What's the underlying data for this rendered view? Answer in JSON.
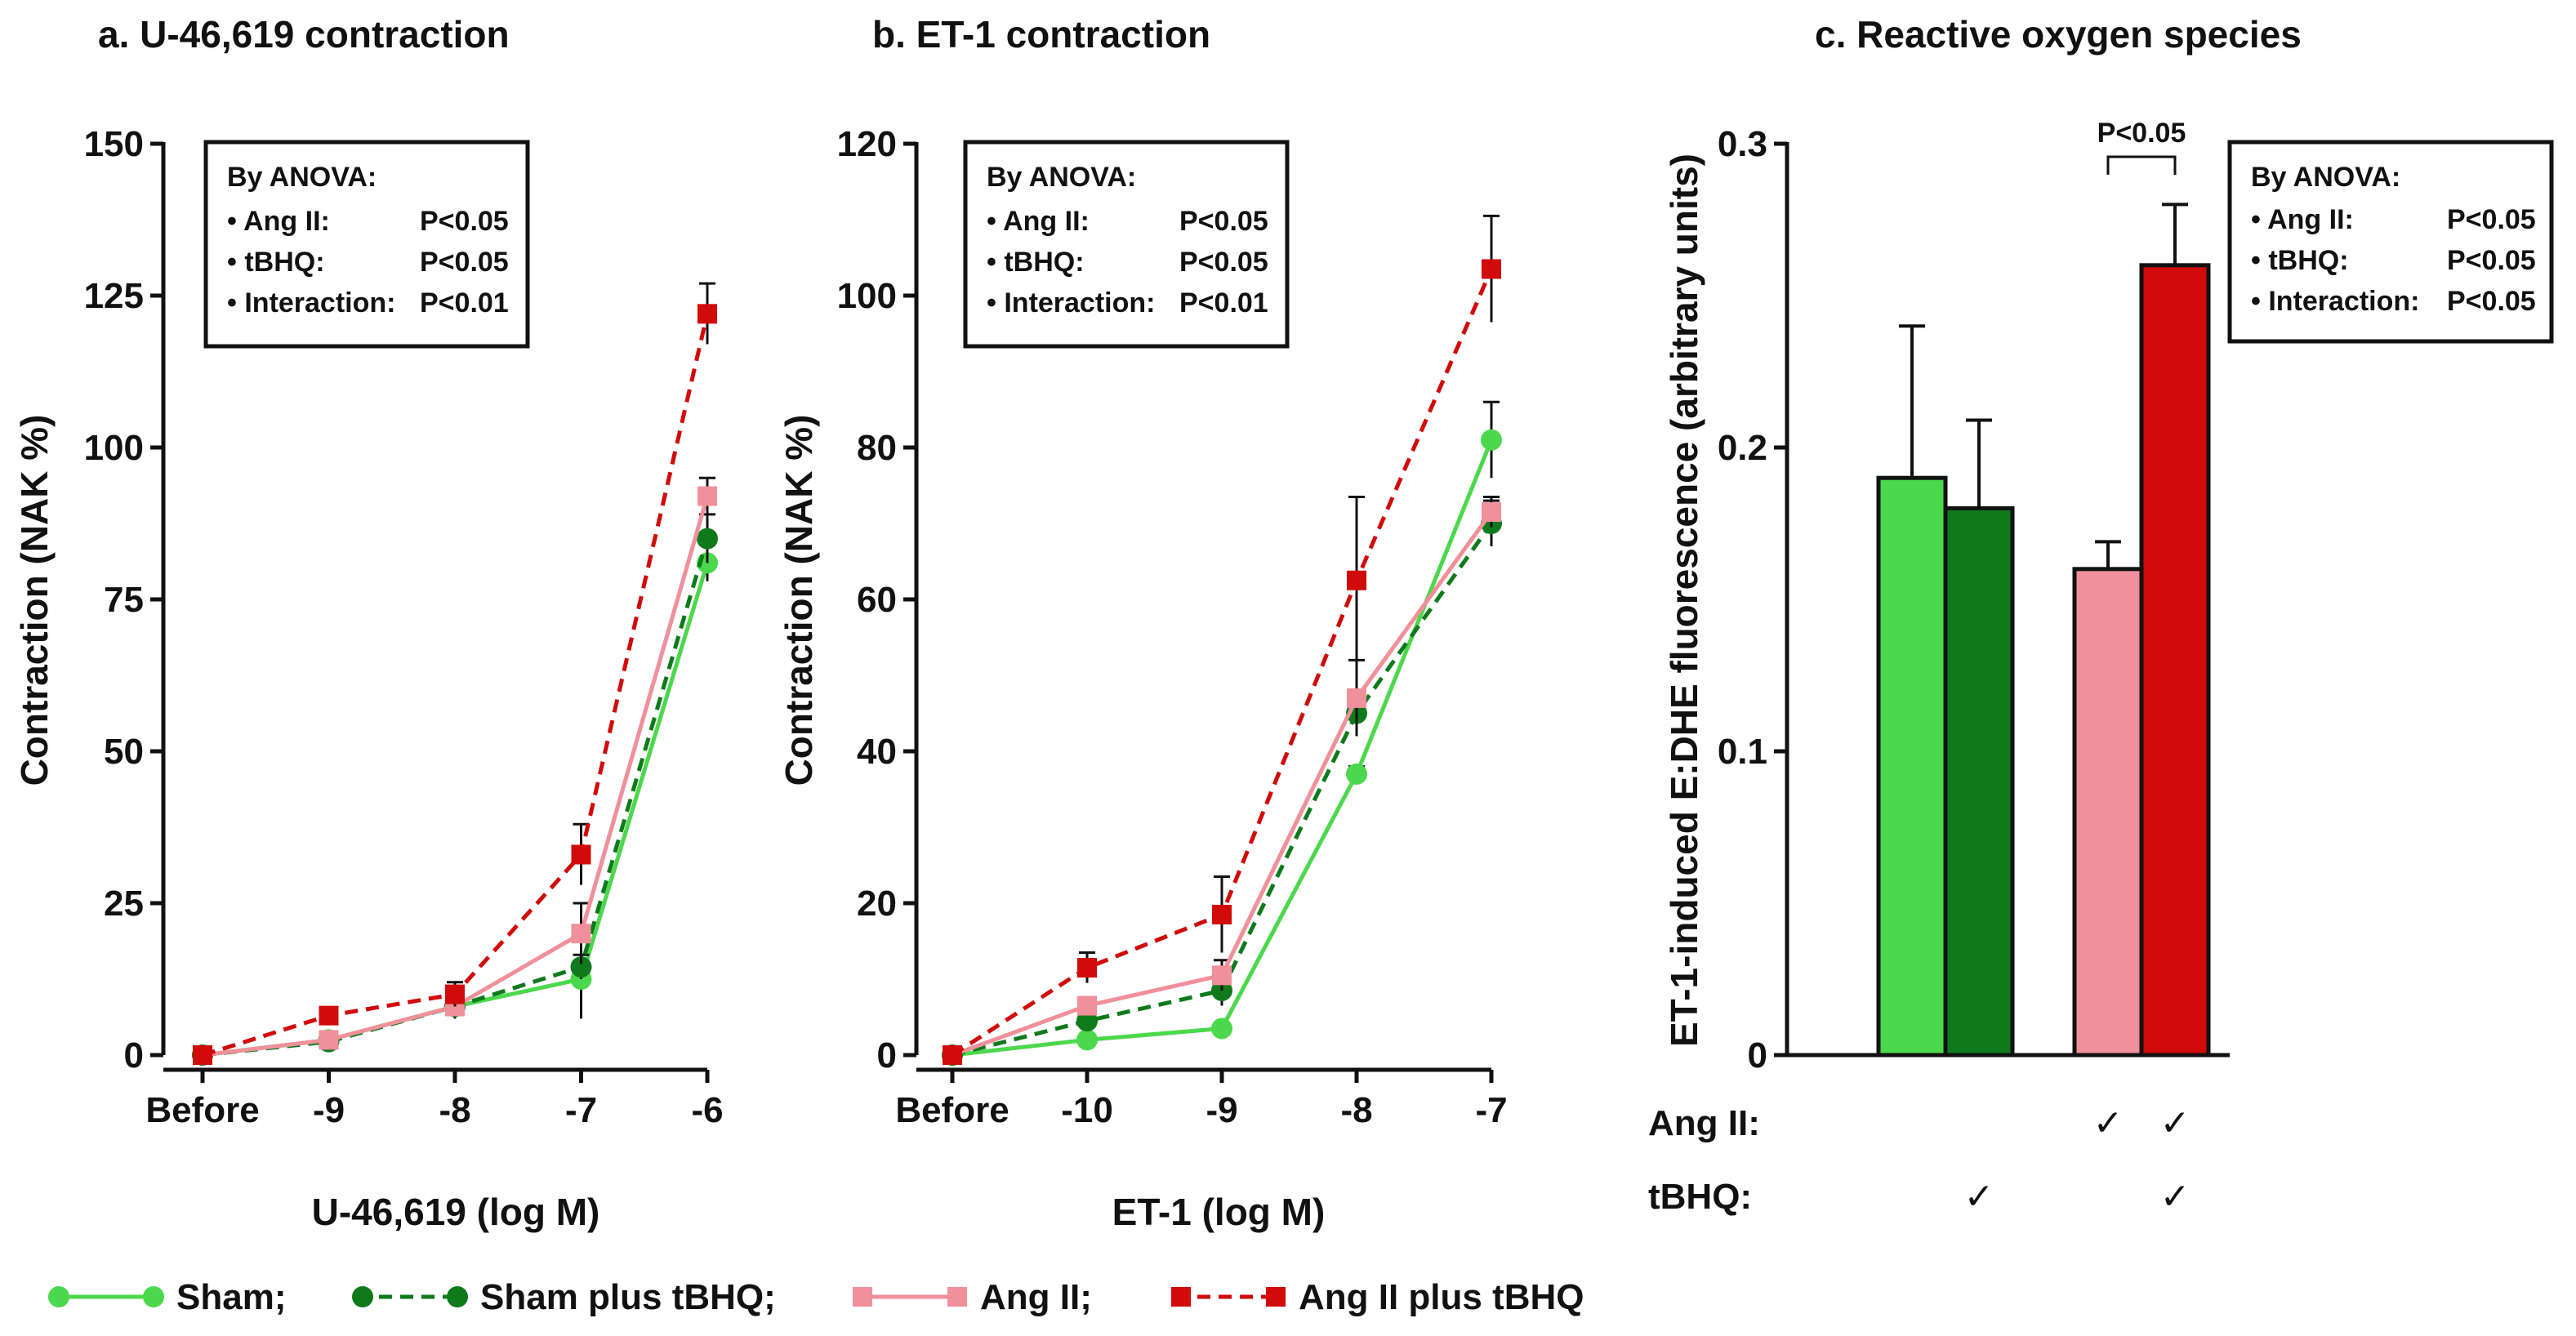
{
  "colors": {
    "sham": "#4cd84c",
    "sham_tbhq": "#0e7a1c",
    "angii": "#f0909a",
    "angii_tbhq": "#d10a0a",
    "axis": "#111111",
    "error": "#111111"
  },
  "legend": {
    "items": [
      {
        "key": "sham",
        "label": "Sham;",
        "marker": "circle",
        "dash": false
      },
      {
        "key": "sham_tbhq",
        "label": "Sham plus tBHQ;",
        "marker": "circle",
        "dash": true
      },
      {
        "key": "angii",
        "label": "Ang II;",
        "marker": "square",
        "dash": false
      },
      {
        "key": "angii_tbhq",
        "label": "Ang II plus tBHQ",
        "marker": "square",
        "dash": true
      }
    ]
  },
  "chart_data": [
    {
      "type": "line",
      "title": "a. U-46,619 contraction",
      "xlabel": "U-46,619 (log M)",
      "ylabel": "Contraction (NAK %)",
      "categories": [
        "Before",
        "-9",
        "-8",
        "-7",
        "-6"
      ],
      "ylim": [
        0,
        150
      ],
      "yticks": [
        "0",
        "25",
        "50",
        "75",
        "100",
        "125",
        "150"
      ],
      "series": [
        {
          "key": "sham",
          "name": "Sham",
          "values": [
            0,
            2.5,
            8,
            12.5,
            81
          ],
          "errors": [
            0,
            0.5,
            1,
            6.5,
            3
          ]
        },
        {
          "key": "sham_tbhq",
          "name": "Sham plus tBHQ",
          "values": [
            0,
            2.2,
            8,
            14.5,
            85
          ],
          "errors": [
            0,
            0.5,
            2,
            2,
            4
          ]
        },
        {
          "key": "angii",
          "name": "Ang II",
          "values": [
            0,
            2.5,
            8,
            20,
            92
          ],
          "errors": [
            0,
            0.5,
            1.5,
            5,
            3
          ]
        },
        {
          "key": "angii_tbhq",
          "name": "Ang II plus tBHQ",
          "values": [
            0,
            6.5,
            10,
            33,
            122
          ],
          "errors": [
            0,
            1,
            2,
            5,
            5
          ]
        }
      ],
      "stats": {
        "heading": "By ANOVA:",
        "rows": [
          {
            "label": "• Ang II:",
            "value": "P<0.05"
          },
          {
            "label": "• tBHQ:",
            "value": "P<0.05"
          },
          {
            "label": "• Interaction:",
            "value": "P<0.01"
          }
        ]
      }
    },
    {
      "type": "line",
      "title": "b. ET-1 contraction",
      "xlabel": "ET-1 (log M)",
      "ylabel": "Contraction (NAK %)",
      "categories": [
        "Before",
        "-10",
        "-9",
        "-8",
        "-7"
      ],
      "ylim": [
        0,
        120
      ],
      "yticks": [
        "0",
        "20",
        "40",
        "60",
        "80",
        "100",
        "120"
      ],
      "series": [
        {
          "key": "sham",
          "name": "Sham",
          "values": [
            0,
            2,
            3.5,
            37,
            81
          ],
          "errors": [
            0,
            0.5,
            0.5,
            1,
            5
          ]
        },
        {
          "key": "sham_tbhq",
          "name": "Sham plus tBHQ",
          "values": [
            0,
            4.5,
            8.5,
            45,
            70
          ],
          "errors": [
            0,
            1,
            2,
            3,
            3
          ]
        },
        {
          "key": "angii",
          "name": "Ang II",
          "values": [
            0,
            6.5,
            10.5,
            47,
            71.5
          ],
          "errors": [
            0,
            1,
            2,
            5,
            2
          ]
        },
        {
          "key": "angii_tbhq",
          "name": "Ang II plus tBHQ",
          "values": [
            0,
            11.5,
            18.5,
            62.5,
            103.5
          ],
          "errors": [
            0,
            2,
            5,
            11,
            7
          ]
        }
      ],
      "stats": {
        "heading": "By ANOVA:",
        "rows": [
          {
            "label": "• Ang II:",
            "value": "P<0.05"
          },
          {
            "label": "• tBHQ:",
            "value": "P<0.05"
          },
          {
            "label": "• Interaction:",
            "value": "P<0.01"
          }
        ]
      }
    },
    {
      "type": "bar",
      "title": "c. Reactive oxygen species",
      "ylabel": "ET-1-induced E:DHE fluorescence (arbitrary units)",
      "ylim": [
        0,
        0.3
      ],
      "yticks": [
        "0",
        "0.1",
        "0.2",
        "0.3"
      ],
      "bars": [
        {
          "key": "sham",
          "name": "Sham",
          "value": 0.19,
          "error": 0.05
        },
        {
          "key": "sham_tbhq",
          "name": "Sham plus tBHQ",
          "value": 0.18,
          "error": 0.029
        },
        {
          "key": "angii",
          "name": "Ang II",
          "value": 0.16,
          "error": 0.009
        },
        {
          "key": "angii_tbhq",
          "name": "Ang II plus tBHQ",
          "value": 0.26,
          "error": 0.02
        }
      ],
      "significance": {
        "between": [
          2,
          3
        ],
        "label": "P<0.05"
      },
      "conditions": [
        {
          "label": "Ang II:",
          "checks": [
            false,
            false,
            true,
            true
          ]
        },
        {
          "label": "tBHQ:",
          "checks": [
            false,
            true,
            false,
            true
          ]
        }
      ],
      "check_symbol": "✓",
      "stats": {
        "heading": "By ANOVA:",
        "rows": [
          {
            "label": "• Ang II:",
            "value": "P<0.05"
          },
          {
            "label": "• tBHQ:",
            "value": "P<0.05"
          },
          {
            "label": "• Interaction:",
            "value": "P<0.05"
          }
        ]
      }
    }
  ]
}
